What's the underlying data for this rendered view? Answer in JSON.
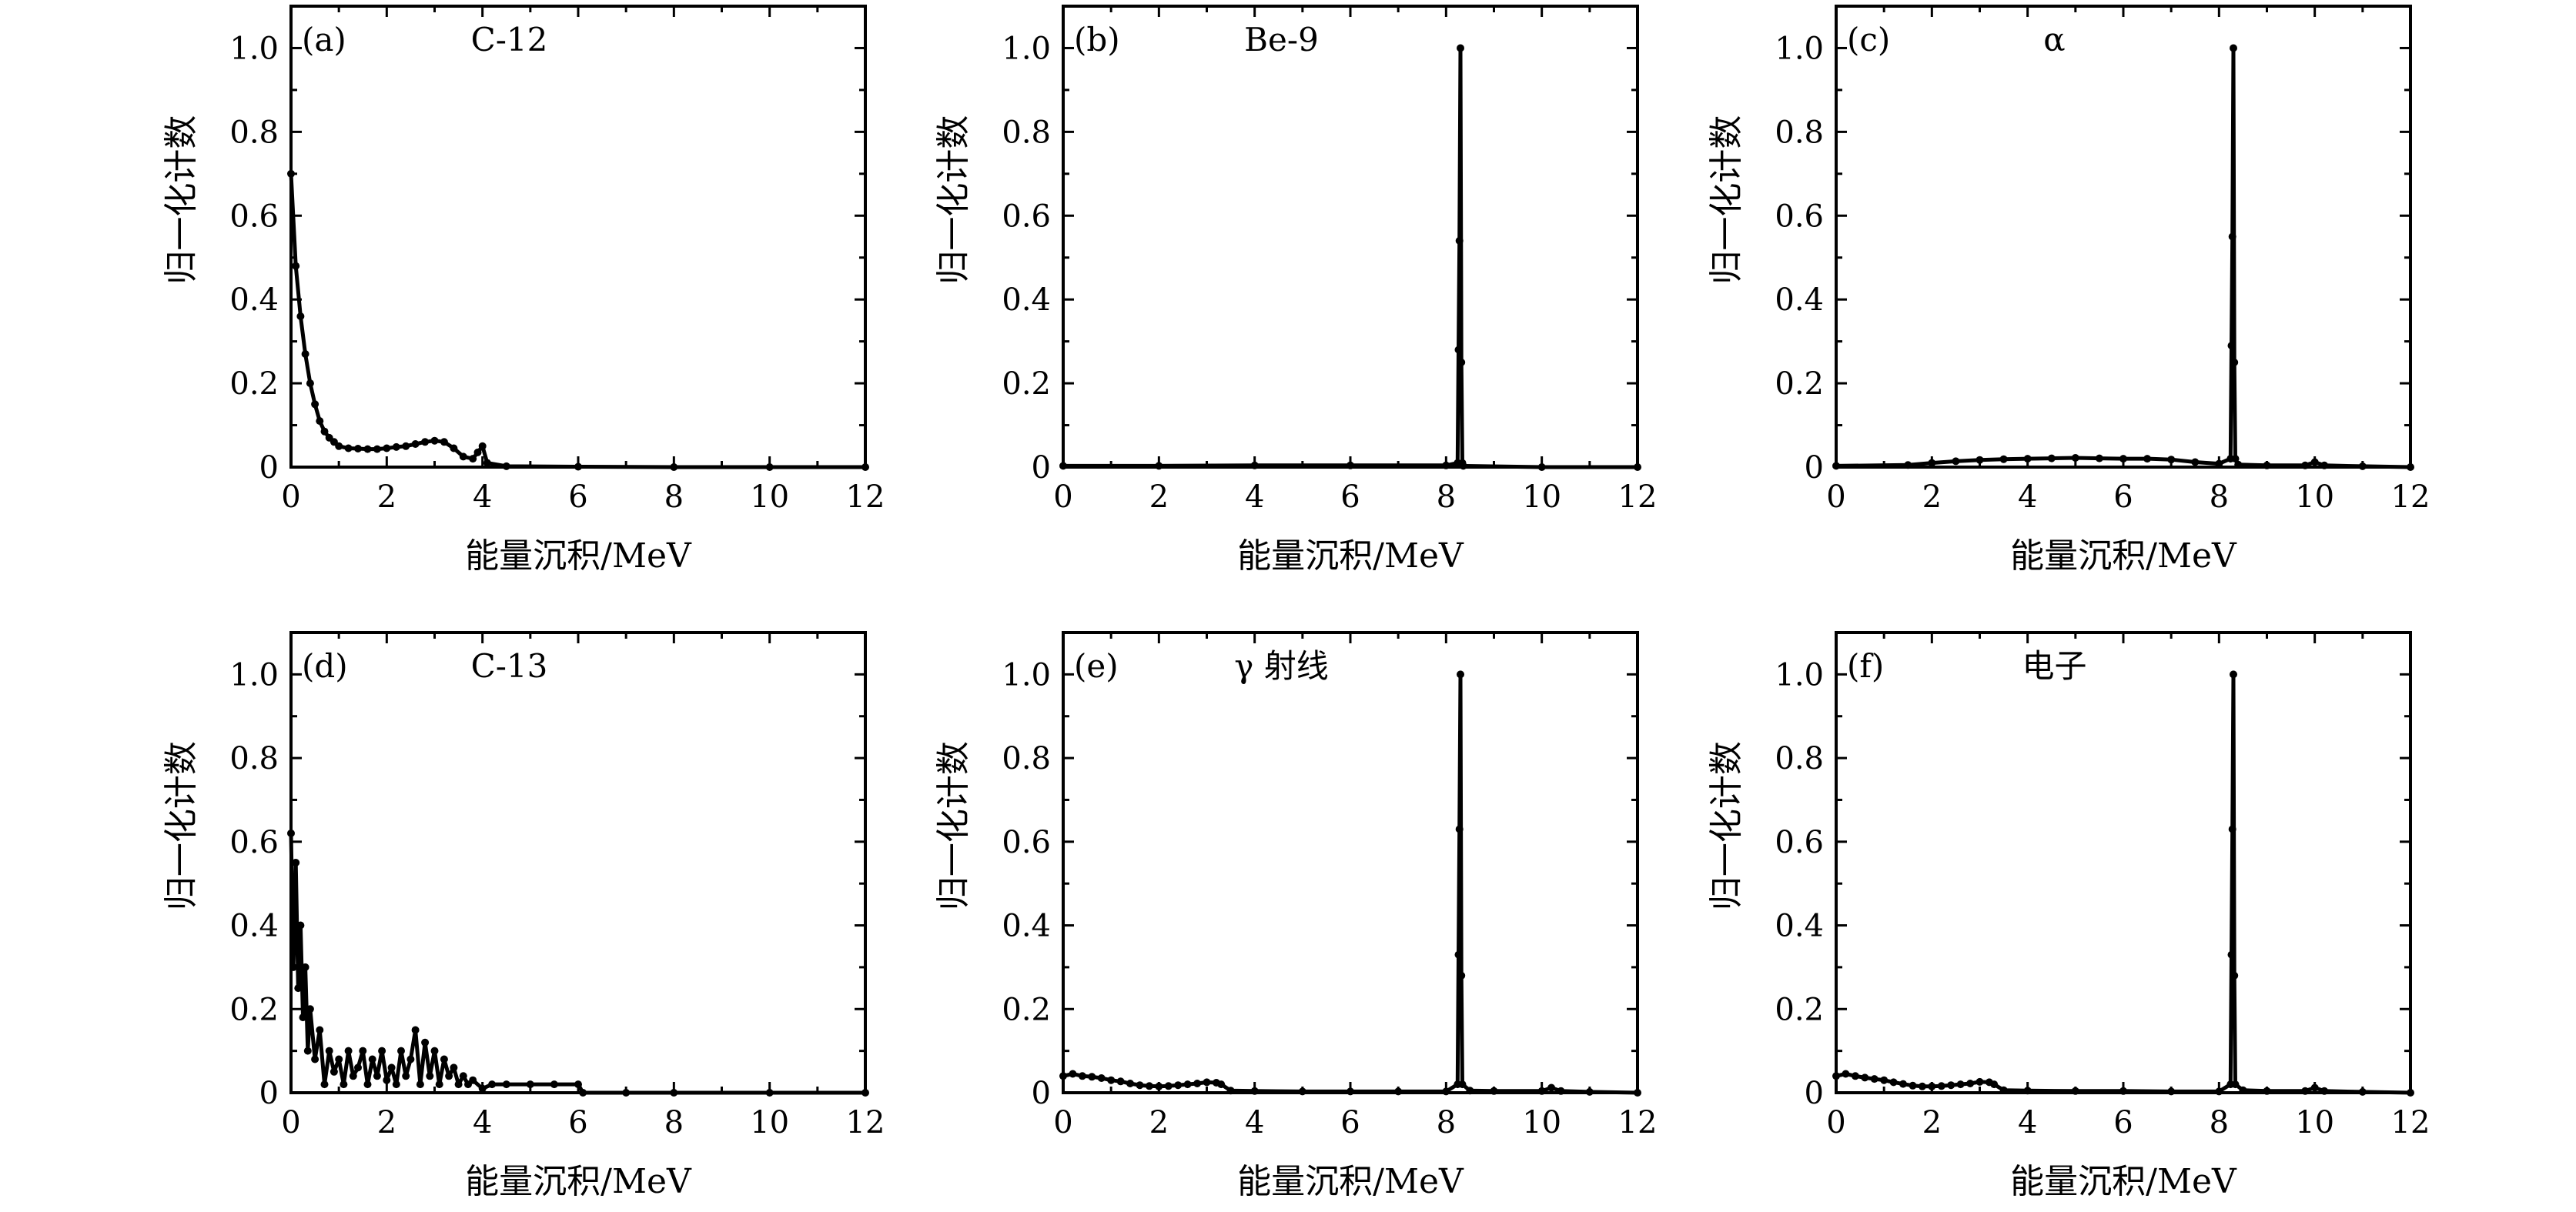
{
  "chart_data": [
    {
      "type": "line",
      "panel_label": "(a)",
      "title": "C-12",
      "xlabel": "能量沉积/MeV",
      "ylabel": "归一化计数",
      "xlim": [
        0,
        12
      ],
      "ylim": [
        0,
        1.1
      ],
      "xticks": [
        "0",
        "2",
        "4",
        "6",
        "8",
        "10",
        "12"
      ],
      "yticks": [
        "0",
        "0.2",
        "0.4",
        "0.6",
        "0.8",
        "1.0"
      ],
      "x": [
        0.0,
        0.1,
        0.2,
        0.3,
        0.4,
        0.5,
        0.6,
        0.7,
        0.8,
        0.9,
        1.0,
        1.2,
        1.4,
        1.6,
        1.8,
        2.0,
        2.2,
        2.4,
        2.6,
        2.8,
        3.0,
        3.2,
        3.4,
        3.6,
        3.8,
        3.9,
        4.0,
        4.1,
        4.5,
        6.0,
        8.0,
        10.0,
        12.0
      ],
      "y": [
        0.7,
        0.48,
        0.36,
        0.27,
        0.2,
        0.15,
        0.11,
        0.085,
        0.07,
        0.06,
        0.05,
        0.045,
        0.044,
        0.043,
        0.043,
        0.045,
        0.048,
        0.05,
        0.055,
        0.06,
        0.063,
        0.06,
        0.045,
        0.025,
        0.02,
        0.035,
        0.05,
        0.01,
        0.002,
        0.001,
        0.0,
        0.0,
        0.0
      ]
    },
    {
      "type": "line",
      "panel_label": "(b)",
      "title": "Be-9",
      "xlabel": "能量沉积/MeV",
      "ylabel": "归一化计数",
      "xlim": [
        0,
        12
      ],
      "ylim": [
        0,
        1.1
      ],
      "xticks": [
        "0",
        "2",
        "4",
        "6",
        "8",
        "10",
        "12"
      ],
      "yticks": [
        "0",
        "0.2",
        "0.4",
        "0.6",
        "0.8",
        "1.0"
      ],
      "x": [
        0.0,
        2.0,
        4.0,
        6.0,
        8.0,
        8.24,
        8.26,
        8.28,
        8.3,
        8.32,
        8.34,
        8.36,
        10.0,
        12.0
      ],
      "y": [
        0.003,
        0.003,
        0.004,
        0.004,
        0.004,
        0.01,
        0.28,
        0.54,
        1.0,
        0.25,
        0.01,
        0.003,
        0.0,
        0.0
      ]
    },
    {
      "type": "line",
      "panel_label": "(c)",
      "title": "α",
      "xlabel": "能量沉积/MeV",
      "ylabel": "归一化计数",
      "xlim": [
        0,
        12
      ],
      "ylim": [
        0,
        1.1
      ],
      "xticks": [
        "0",
        "2",
        "4",
        "6",
        "8",
        "10",
        "12"
      ],
      "yticks": [
        "0",
        "0.2",
        "0.4",
        "0.6",
        "0.8",
        "1.0"
      ],
      "x": [
        0.0,
        1.5,
        2.0,
        2.5,
        3.0,
        3.5,
        4.0,
        4.5,
        5.0,
        5.5,
        6.0,
        6.5,
        7.0,
        7.5,
        8.0,
        8.24,
        8.26,
        8.28,
        8.3,
        8.32,
        8.34,
        8.4,
        9.0,
        9.8,
        10.0,
        10.2,
        11.0,
        12.0
      ],
      "y": [
        0.003,
        0.005,
        0.01,
        0.014,
        0.017,
        0.019,
        0.02,
        0.021,
        0.022,
        0.021,
        0.02,
        0.02,
        0.018,
        0.012,
        0.008,
        0.02,
        0.29,
        0.55,
        1.0,
        0.25,
        0.02,
        0.006,
        0.004,
        0.004,
        0.012,
        0.004,
        0.002,
        0.0
      ]
    },
    {
      "type": "line",
      "panel_label": "(d)",
      "title": "C-13",
      "xlabel": "能量沉积/MeV",
      "ylabel": "归一化计数",
      "xlim": [
        0,
        12
      ],
      "ylim": [
        0,
        1.1
      ],
      "xticks": [
        "0",
        "2",
        "4",
        "6",
        "8",
        "10",
        "12"
      ],
      "yticks": [
        "0",
        "0.2",
        "0.4",
        "0.6",
        "0.8",
        "1.0"
      ],
      "x": [
        0.0,
        0.05,
        0.1,
        0.15,
        0.2,
        0.25,
        0.3,
        0.35,
        0.4,
        0.5,
        0.6,
        0.7,
        0.8,
        0.9,
        1.0,
        1.1,
        1.2,
        1.3,
        1.4,
        1.5,
        1.6,
        1.7,
        1.8,
        1.9,
        2.0,
        2.1,
        2.2,
        2.3,
        2.4,
        2.5,
        2.6,
        2.7,
        2.8,
        2.9,
        3.0,
        3.1,
        3.2,
        3.3,
        3.4,
        3.5,
        3.6,
        3.7,
        3.8,
        4.0,
        4.2,
        4.5,
        5.0,
        5.5,
        6.0,
        6.1,
        7.0,
        8.0,
        10.0,
        12.0
      ],
      "y": [
        0.62,
        0.3,
        0.55,
        0.25,
        0.4,
        0.18,
        0.3,
        0.1,
        0.2,
        0.08,
        0.15,
        0.02,
        0.1,
        0.05,
        0.08,
        0.02,
        0.1,
        0.04,
        0.06,
        0.1,
        0.02,
        0.08,
        0.04,
        0.1,
        0.03,
        0.06,
        0.02,
        0.1,
        0.04,
        0.08,
        0.15,
        0.02,
        0.12,
        0.04,
        0.1,
        0.02,
        0.08,
        0.04,
        0.06,
        0.02,
        0.04,
        0.02,
        0.03,
        0.01,
        0.02,
        0.02,
        0.02,
        0.02,
        0.02,
        0.0,
        0.0,
        0.0,
        0.0,
        0.0
      ]
    },
    {
      "type": "line",
      "panel_label": "(e)",
      "title": "γ 射线",
      "xlabel": "能量沉积/MeV",
      "ylabel": "归一化计数",
      "xlim": [
        0,
        12
      ],
      "ylim": [
        0,
        1.1
      ],
      "xticks": [
        "0",
        "2",
        "4",
        "6",
        "8",
        "10",
        "12"
      ],
      "yticks": [
        "0",
        "0.2",
        "0.4",
        "0.6",
        "0.8",
        "1.0"
      ],
      "x": [
        0.0,
        0.2,
        0.4,
        0.6,
        0.8,
        1.0,
        1.2,
        1.4,
        1.6,
        1.8,
        2.0,
        2.2,
        2.4,
        2.6,
        2.8,
        3.0,
        3.2,
        3.3,
        3.5,
        4.0,
        5.0,
        6.0,
        7.0,
        8.0,
        8.24,
        8.26,
        8.28,
        8.3,
        8.32,
        8.34,
        8.5,
        9.0,
        10.0,
        10.2,
        10.4,
        11.0,
        12.0
      ],
      "y": [
        0.04,
        0.045,
        0.04,
        0.038,
        0.035,
        0.03,
        0.027,
        0.022,
        0.018,
        0.016,
        0.015,
        0.016,
        0.018,
        0.02,
        0.022,
        0.025,
        0.024,
        0.02,
        0.005,
        0.004,
        0.003,
        0.003,
        0.003,
        0.003,
        0.02,
        0.33,
        0.63,
        1.0,
        0.28,
        0.02,
        0.005,
        0.004,
        0.004,
        0.012,
        0.004,
        0.002,
        0.0
      ]
    },
    {
      "type": "line",
      "panel_label": "(f)",
      "title": "电子",
      "xlabel": "能量沉积/MeV",
      "ylabel": "归一化计数",
      "xlim": [
        0,
        12
      ],
      "ylim": [
        0,
        1.1
      ],
      "xticks": [
        "0",
        "2",
        "4",
        "6",
        "8",
        "10",
        "12"
      ],
      "yticks": [
        "0",
        "0.2",
        "0.4",
        "0.6",
        "0.8",
        "1.0"
      ],
      "x": [
        0.0,
        0.2,
        0.4,
        0.6,
        0.8,
        1.0,
        1.2,
        1.4,
        1.6,
        1.8,
        2.0,
        2.2,
        2.4,
        2.6,
        2.8,
        3.0,
        3.2,
        3.3,
        3.5,
        4.0,
        5.0,
        6.0,
        7.0,
        8.0,
        8.24,
        8.26,
        8.28,
        8.3,
        8.32,
        8.34,
        8.5,
        9.0,
        9.8,
        10.0,
        10.2,
        11.0,
        12.0
      ],
      "y": [
        0.04,
        0.045,
        0.04,
        0.036,
        0.033,
        0.03,
        0.025,
        0.021,
        0.017,
        0.015,
        0.015,
        0.016,
        0.018,
        0.02,
        0.022,
        0.026,
        0.025,
        0.02,
        0.006,
        0.005,
        0.004,
        0.004,
        0.003,
        0.003,
        0.02,
        0.33,
        0.63,
        1.0,
        0.28,
        0.02,
        0.006,
        0.004,
        0.004,
        0.012,
        0.004,
        0.002,
        0.0
      ]
    }
  ]
}
